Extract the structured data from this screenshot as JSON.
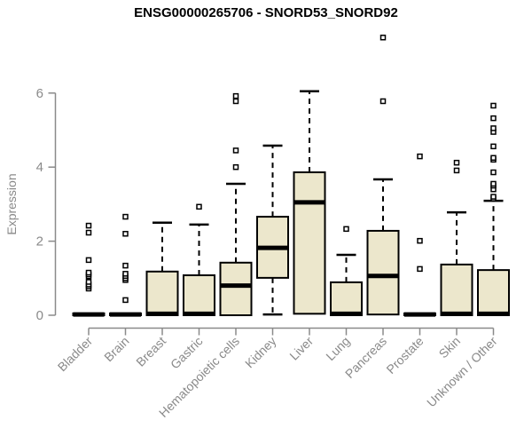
{
  "chart_data": {
    "type": "boxplot",
    "title": "ENSG00000265706 - SNORD53_SNORD92",
    "xlabel": "",
    "ylabel": "Expression",
    "ylim": [
      0,
      6
    ],
    "yticks": [
      0,
      2,
      4,
      6
    ],
    "grid": false,
    "legend": "none",
    "categories": [
      {
        "label": "Bladder",
        "q1": 0,
        "median": 0.02,
        "q3": 0.05,
        "whisker_low": 0,
        "whisker_high": 0.05,
        "outliers": [
          0.72,
          0.78,
          0.83,
          0.9,
          1.05,
          1.1,
          1.15,
          1.49,
          2.23,
          2.42
        ]
      },
      {
        "label": "Brain",
        "q1": 0,
        "median": 0.02,
        "q3": 0.05,
        "whisker_low": 0,
        "whisker_high": 0.05,
        "outliers": [
          0.41,
          0.95,
          1.0,
          1.06,
          1.12,
          1.34,
          2.2,
          2.66
        ]
      },
      {
        "label": "Breast",
        "q1": 0,
        "median": 0.04,
        "q3": 1.18,
        "whisker_low": 0,
        "whisker_high": 2.5,
        "outliers": []
      },
      {
        "label": "Gastric",
        "q1": 0,
        "median": 0.04,
        "q3": 1.08,
        "whisker_low": 0,
        "whisker_high": 2.45,
        "outliers": [
          2.93
        ]
      },
      {
        "label": "Hematopoietic cells",
        "q1": 0,
        "median": 0.8,
        "q3": 1.42,
        "whisker_low": 0,
        "whisker_high": 3.55,
        "outliers": [
          4.0,
          4.45,
          5.78,
          5.92
        ]
      },
      {
        "label": "Kidney",
        "q1": 1.01,
        "median": 1.82,
        "q3": 2.66,
        "whisker_low": 0.02,
        "whisker_high": 4.58,
        "outliers": []
      },
      {
        "label": "Liver",
        "q1": 0.04,
        "median": 3.05,
        "q3": 3.86,
        "whisker_low": 0.04,
        "whisker_high": 6.05,
        "outliers": []
      },
      {
        "label": "Lung",
        "q1": 0,
        "median": 0.04,
        "q3": 0.89,
        "whisker_low": 0,
        "whisker_high": 1.63,
        "outliers": [
          2.33
        ]
      },
      {
        "label": "Pancreas",
        "q1": 0.02,
        "median": 1.06,
        "q3": 2.28,
        "whisker_low": 0.02,
        "whisker_high": 3.67,
        "outliers": [
          5.78,
          7.5
        ]
      },
      {
        "label": "Prostate",
        "q1": 0,
        "median": 0.02,
        "q3": 0.05,
        "whisker_low": 0,
        "whisker_high": 0.05,
        "outliers": [
          1.25,
          2.01,
          4.29
        ]
      },
      {
        "label": "Skin",
        "q1": 0,
        "median": 0.04,
        "q3": 1.37,
        "whisker_low": 0,
        "whisker_high": 2.78,
        "outliers": [
          3.91,
          4.12
        ]
      },
      {
        "label": "Unknown / Other",
        "q1": 0,
        "median": 0.04,
        "q3": 1.22,
        "whisker_low": 0,
        "whisker_high": 3.09,
        "outliers": [
          3.15,
          3.2,
          3.4,
          3.5,
          3.55,
          3.86,
          4.2,
          4.25,
          4.56,
          4.95,
          5.05,
          5.32,
          5.66
        ]
      }
    ],
    "colors": {
      "box_fill": "#ECE7CC",
      "box_border": "#000000",
      "median": "#000000",
      "whisker": "#000000",
      "outlier_stroke": "#000000",
      "outlier_fill": "#ffffff",
      "axis": "#8a8a8a",
      "tick_label": "#8a8a8a",
      "title": "#000000"
    }
  }
}
